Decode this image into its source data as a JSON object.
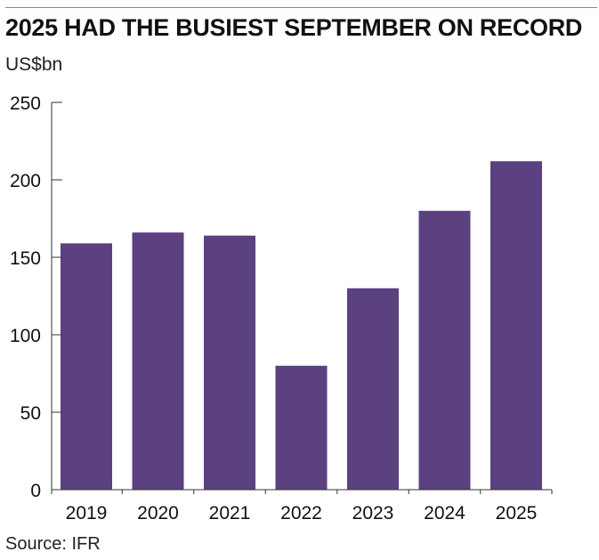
{
  "chart_data": {
    "type": "bar",
    "title": "2025 HAD THE BUSIEST SEPTEMBER ON RECORD",
    "ylabel": "US$bn",
    "xlabel": "",
    "categories": [
      "2019",
      "2020",
      "2021",
      "2022",
      "2023",
      "2024",
      "2025"
    ],
    "values": [
      159,
      166,
      164,
      80,
      130,
      180,
      212
    ],
    "ylim": [
      0,
      250
    ],
    "yticks": [
      0,
      50,
      100,
      150,
      200,
      250
    ],
    "bar_color": "#5b4180",
    "grid": false,
    "legend": "none",
    "source": "Source: IFR"
  }
}
